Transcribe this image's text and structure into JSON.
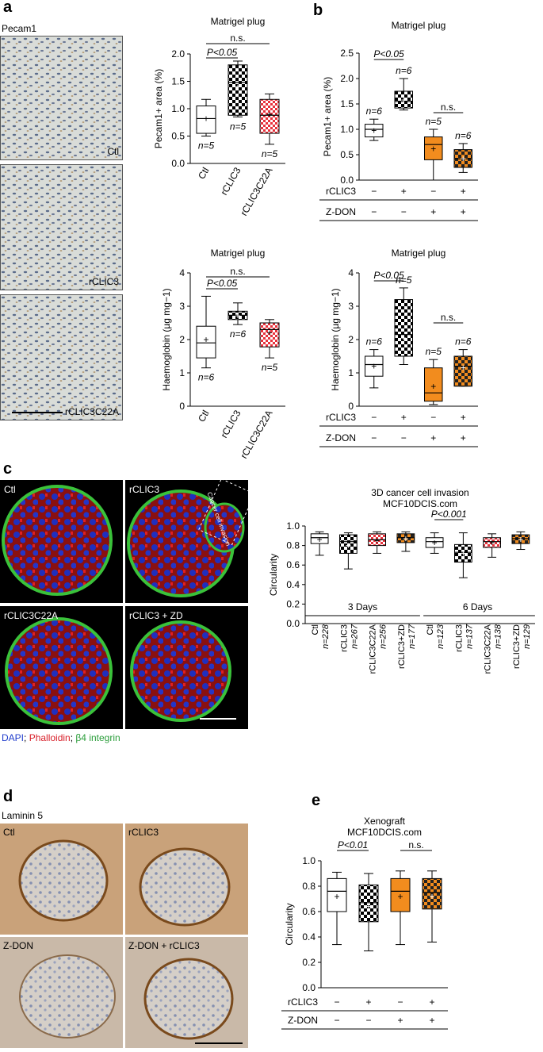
{
  "panel_letters": {
    "a": "a",
    "b": "b",
    "c": "c",
    "d": "d",
    "e": "e"
  },
  "panel_a": {
    "stain": "Pecam1",
    "images": [
      "Ctl",
      "rCLIC3",
      "rCLIC3C22A"
    ]
  },
  "panel_c": {
    "images": [
      "Ctl",
      "rCLIC3",
      "rCLIC3C22A",
      "rCLIC3 + ZD"
    ],
    "annotation": "Cancer cell invasion",
    "legend": {
      "dapi": "DAPI",
      "sep1": "; ",
      "phalloidin": "Phalloidin",
      "sep2": "; ",
      "integrin": "β4 integrin"
    }
  },
  "panel_d": {
    "stain": "Laminin 5",
    "images": [
      "Ctl",
      "rCLIC3",
      "Z-DON",
      "Z-DON + rCLIC3"
    ]
  },
  "colors": {
    "orange": "#f28c1e",
    "pink": "#e8323c",
    "green": "#2a9d3a",
    "blue": "#1f3ccc",
    "red": "#d8202a"
  },
  "chart_data": [
    {
      "id": "a1",
      "type": "box",
      "title": "Matrigel plug",
      "ylabel": "Pecam1+ area (%)",
      "ylim": [
        0,
        2.0
      ],
      "yticks": [
        0.0,
        0.5,
        1.0,
        1.5,
        2.0
      ],
      "categories": [
        "Ctl",
        "rCLIC3",
        "rCLIC3C22A"
      ],
      "boxes": [
        {
          "min": 0.5,
          "q1": 0.55,
          "median": 0.82,
          "q3": 1.05,
          "max": 1.17,
          "mean": 0.82,
          "fill": "white",
          "n": "n=5"
        },
        {
          "min": 0.85,
          "q1": 0.88,
          "median": 1.48,
          "q3": 1.8,
          "max": 1.87,
          "mean": 1.4,
          "fill": "check",
          "n": "n=5"
        },
        {
          "min": 0.35,
          "q1": 0.55,
          "median": 0.88,
          "q3": 1.17,
          "max": 1.27,
          "mean": 0.9,
          "fill": "pink",
          "n": "n=5"
        }
      ],
      "comparisons": [
        {
          "from": 0,
          "to": 1,
          "label": "P<0.05"
        },
        {
          "from": 0,
          "to": 2,
          "label": "n.s."
        }
      ]
    },
    {
      "id": "a2",
      "type": "box",
      "title": "Matrigel plug",
      "ylabel": "Haemoglobin (µg mg−1)",
      "ylim": [
        0,
        4
      ],
      "yticks": [
        0,
        1,
        2,
        3,
        4
      ],
      "categories": [
        "Ctl",
        "rCLIC3",
        "rCLIC3C22A"
      ],
      "boxes": [
        {
          "min": 1.15,
          "q1": 1.45,
          "median": 1.9,
          "q3": 2.4,
          "max": 3.3,
          "mean": 2.0,
          "fill": "white",
          "n": "n=6"
        },
        {
          "min": 2.45,
          "q1": 2.6,
          "median": 2.73,
          "q3": 2.85,
          "max": 3.1,
          "mean": 2.72,
          "fill": "check",
          "n": "n=6"
        },
        {
          "min": 1.45,
          "q1": 1.78,
          "median": 2.3,
          "q3": 2.5,
          "max": 2.6,
          "mean": 2.2,
          "fill": "pink",
          "n": "n=5"
        }
      ],
      "comparisons": [
        {
          "from": 0,
          "to": 1,
          "label": "P<0.05"
        },
        {
          "from": 0,
          "to": 2,
          "label": "n.s."
        }
      ]
    },
    {
      "id": "b1",
      "type": "box",
      "title": "Matrigel plug",
      "ylabel": "Pecam1+ area (%)",
      "ylim": [
        0,
        2.5
      ],
      "yticks": [
        0.0,
        0.5,
        1.0,
        1.5,
        2.0,
        2.5
      ],
      "rows": [
        {
          "label": "rCLIC3",
          "values": [
            "−",
            "+",
            "−",
            "+"
          ]
        },
        {
          "label": "Z-DON",
          "values": [
            "−",
            "−",
            "+",
            "+"
          ]
        }
      ],
      "boxes": [
        {
          "min": 0.78,
          "q1": 0.85,
          "median": 1.0,
          "q3": 1.1,
          "max": 1.2,
          "mean": 0.98,
          "fill": "white",
          "n": "n=6",
          "nabove": true
        },
        {
          "min": 1.38,
          "q1": 1.42,
          "median": 1.55,
          "q3": 1.75,
          "max": 2.0,
          "mean": 1.58,
          "fill": "check",
          "n": "n=6",
          "nabove": true
        },
        {
          "min": 0.0,
          "q1": 0.4,
          "median": 0.7,
          "q3": 0.85,
          "max": 1.0,
          "mean": 0.62,
          "fill": "orange",
          "n": "n=5",
          "nabove": true
        },
        {
          "min": 0.15,
          "q1": 0.25,
          "median": 0.42,
          "q3": 0.6,
          "max": 0.72,
          "mean": 0.42,
          "fill": "orangecheck",
          "n": "n=6",
          "nabove": true
        }
      ],
      "comparisons": [
        {
          "from": 0,
          "to": 1,
          "label": "P<0.05"
        },
        {
          "from": 2,
          "to": 3,
          "label": "n.s."
        }
      ]
    },
    {
      "id": "b2",
      "type": "box",
      "title": "Matrigel plug",
      "ylabel": "Haemoglobin (µg mg−1)",
      "ylim": [
        0,
        4
      ],
      "yticks": [
        0,
        1,
        2,
        3,
        4
      ],
      "rows": [
        {
          "label": "rCLIC3",
          "values": [
            "−",
            "+",
            "−",
            "+"
          ]
        },
        {
          "label": "Z-DON",
          "values": [
            "−",
            "−",
            "+",
            "+"
          ]
        }
      ],
      "boxes": [
        {
          "min": 0.55,
          "q1": 0.9,
          "median": 1.25,
          "q3": 1.5,
          "max": 1.7,
          "mean": 1.2,
          "fill": "white",
          "n": "n=6",
          "nabove": true
        },
        {
          "min": 1.25,
          "q1": 1.5,
          "median": 2.15,
          "q3": 3.2,
          "max": 3.55,
          "mean": 2.05,
          "fill": "check",
          "n": "n=5",
          "nabove": true
        },
        {
          "min": 0.05,
          "q1": 0.15,
          "median": 0.4,
          "q3": 1.15,
          "max": 1.4,
          "mean": 0.6,
          "fill": "orange",
          "n": "n=5",
          "nabove": true
        },
        {
          "min": 0.6,
          "q1": 0.6,
          "median": 1.2,
          "q3": 1.5,
          "max": 1.7,
          "mean": 1.15,
          "fill": "orangecheck",
          "n": "n=6",
          "nabove": true
        }
      ],
      "comparisons": [
        {
          "from": 0,
          "to": 1,
          "label": "P<0.05"
        },
        {
          "from": 2,
          "to": 3,
          "label": "n.s."
        }
      ]
    },
    {
      "id": "c",
      "type": "box",
      "title": "3D cancer cell invasion",
      "subtitle": "MCF10DCIS.com",
      "ylabel": "Circularity",
      "ylim": [
        0,
        1.0
      ],
      "yticks": [
        0.0,
        0.2,
        0.4,
        0.6,
        0.8,
        1.0
      ],
      "categories": [
        "Ctl",
        "rCLIC3",
        "rCLIC3C22A",
        "rCLIC3+ZD",
        "Ctl",
        "rCLIC3",
        "rCLIC3C22A",
        "rCLIC3+ZD"
      ],
      "ns": [
        "n=228",
        "n=267",
        "n=256",
        "n=177",
        "n=123",
        "n=137",
        "n=138",
        "n=129"
      ],
      "groups": [
        {
          "label": "3 Days",
          "from": 0,
          "to": 3
        },
        {
          "label": "6 Days",
          "from": 4,
          "to": 7
        }
      ],
      "boxes": [
        {
          "min": 0.7,
          "q1": 0.82,
          "median": 0.88,
          "q3": 0.92,
          "max": 0.94,
          "mean": 0.86,
          "fill": "white"
        },
        {
          "min": 0.56,
          "q1": 0.72,
          "median": 0.84,
          "q3": 0.91,
          "max": 0.93,
          "mean": 0.8,
          "fill": "check"
        },
        {
          "min": 0.72,
          "q1": 0.8,
          "median": 0.86,
          "q3": 0.92,
          "max": 0.94,
          "mean": 0.85,
          "fill": "pink"
        },
        {
          "min": 0.74,
          "q1": 0.83,
          "median": 0.88,
          "q3": 0.92,
          "max": 0.94,
          "mean": 0.87,
          "fill": "orangecheck"
        },
        {
          "min": 0.72,
          "q1": 0.78,
          "median": 0.84,
          "q3": 0.88,
          "max": 0.93,
          "mean": 0.83,
          "fill": "white"
        },
        {
          "min": 0.47,
          "q1": 0.63,
          "median": 0.73,
          "q3": 0.81,
          "max": 0.93,
          "mean": 0.72,
          "fill": "check"
        },
        {
          "min": 0.68,
          "q1": 0.78,
          "median": 0.84,
          "q3": 0.88,
          "max": 0.92,
          "mean": 0.83,
          "fill": "pink"
        },
        {
          "min": 0.76,
          "q1": 0.82,
          "median": 0.87,
          "q3": 0.91,
          "max": 0.94,
          "mean": 0.86,
          "fill": "orangecheck"
        }
      ],
      "comparisons": [
        {
          "from": 4,
          "to": 5,
          "label": "P<0.001"
        }
      ]
    },
    {
      "id": "e",
      "type": "box",
      "title": "Xenograft",
      "subtitle": "MCF10DCIS.com",
      "ylabel": "Circularity",
      "ylim": [
        0,
        1.0
      ],
      "yticks": [
        0.0,
        0.2,
        0.4,
        0.6,
        0.8,
        1.0
      ],
      "rows": [
        {
          "label": "rCLIC3",
          "values": [
            "−",
            "+",
            "−",
            "+"
          ]
        },
        {
          "label": "Z-DON",
          "values": [
            "−",
            "−",
            "+",
            "+"
          ]
        }
      ],
      "boxes": [
        {
          "min": 0.34,
          "q1": 0.6,
          "median": 0.76,
          "q3": 0.86,
          "max": 0.91,
          "mean": 0.72,
          "fill": "white"
        },
        {
          "min": 0.29,
          "q1": 0.52,
          "median": 0.67,
          "q3": 0.81,
          "max": 0.9,
          "mean": 0.64,
          "fill": "check"
        },
        {
          "min": 0.34,
          "q1": 0.6,
          "median": 0.76,
          "q3": 0.86,
          "max": 0.92,
          "mean": 0.72,
          "fill": "orange"
        },
        {
          "min": 0.36,
          "q1": 0.62,
          "median": 0.75,
          "q3": 0.86,
          "max": 0.92,
          "mean": 0.72,
          "fill": "orangecheck"
        }
      ],
      "comparisons": [
        {
          "from": 0,
          "to": 1,
          "label": "P<0.01"
        },
        {
          "from": 2,
          "to": 3,
          "label": "n.s."
        }
      ]
    }
  ]
}
